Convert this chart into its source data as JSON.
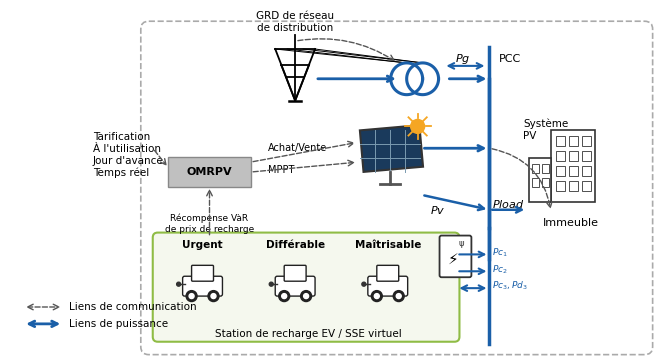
{
  "bg_color": "#ffffff",
  "blue": "#1a5fa8",
  "dark_gray": "#555555",
  "ev_box_border": "#8fbc45",
  "ev_box_fill": "#f5f8ee",
  "omr_fill": "#c0c0c0",
  "labels": {
    "grd": "GRD de réseau\nde distribution",
    "pg": "$Pg$",
    "pcc": "PCC",
    "systeme_pv": "Système\nPV",
    "omrpv": "OMRPV",
    "achat_vente": "Achat/Vente",
    "mppt": "MPPT",
    "pv": "$Pv$",
    "pload": "$Pload$",
    "immeuble": "Immeuble",
    "recompense": "Récompense VàR\nde prix de recharge",
    "tarification": "Tarification\nÀ l'utilisation\nJour d'avance\nTemps réel",
    "urgent": "Urgent",
    "differable": "Différable",
    "maitrisable": "Maîtrisable",
    "station": "Station de recharge EV / SSE virtuel",
    "liens_comm": "Liens de communication",
    "liens_puiss": "Liens de puissance",
    "pc1": "$Pc_1$",
    "pc2": "$Pc_2$",
    "pc3pd3": "$Pc_3, Pd_3$"
  }
}
